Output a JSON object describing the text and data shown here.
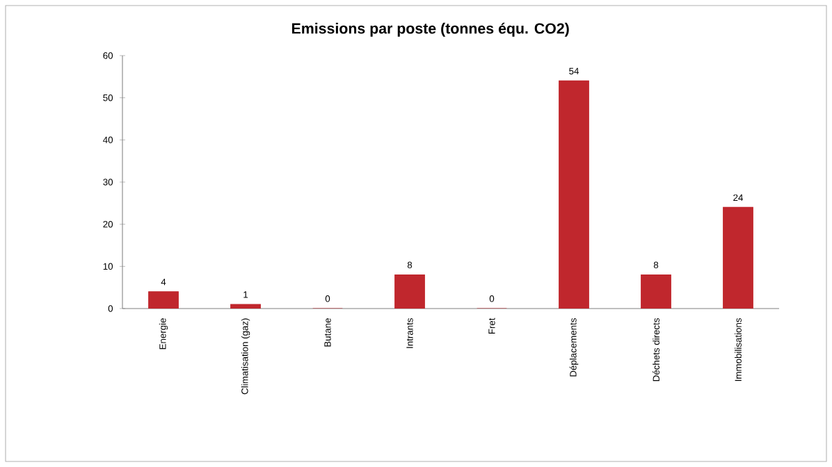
{
  "chart_data": {
    "type": "bar",
    "title": "Emissions par poste (tonnes équ. CO2)",
    "categories": [
      "Energie",
      "Climatisation (gaz)",
      "Butane",
      "Intrants",
      "Fret",
      "Déplacements",
      "Déchets directs",
      "Immobilisations"
    ],
    "values": [
      4,
      1,
      0,
      8,
      0,
      54,
      8,
      24
    ],
    "color": "#c0272d",
    "ylim": [
      0,
      60
    ],
    "yticks": [
      0,
      10,
      20,
      30,
      40,
      50,
      60
    ],
    "data_labels": true,
    "grid": false
  }
}
